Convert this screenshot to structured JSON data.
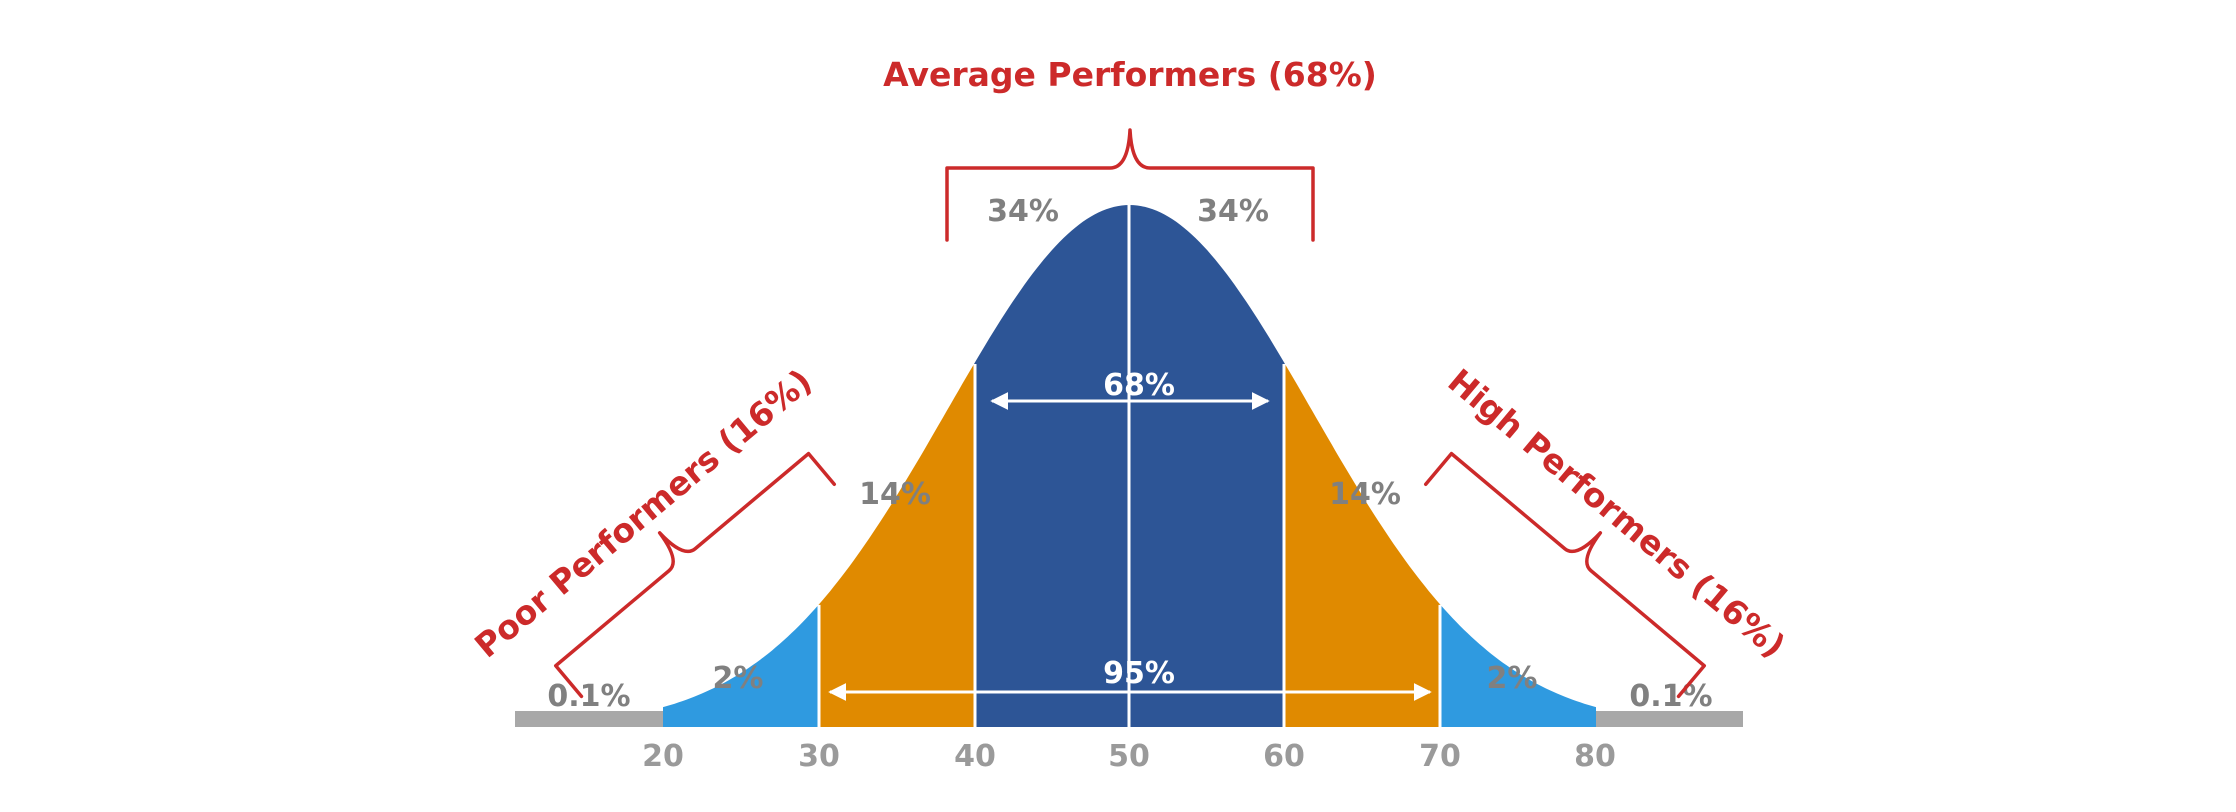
{
  "colors": {
    "center": "#2d5596",
    "mid": "#e08a00",
    "outer": "#2f9ae0",
    "tail": "#a8a8a8",
    "annotation": "#cc2a2a",
    "label": "#808080",
    "inner_text": "#ffffff"
  },
  "x_axis": {
    "ticks": [
      "20",
      "30",
      "40",
      "50",
      "60",
      "70",
      "80"
    ]
  },
  "segments": [
    {
      "from": 20,
      "to": 30,
      "percent": "2%"
    },
    {
      "from": 30,
      "to": 40,
      "percent": "14%"
    },
    {
      "from": 40,
      "to": 50,
      "percent": "34%"
    },
    {
      "from": 50,
      "to": 60,
      "percent": "34%"
    },
    {
      "from": 60,
      "to": 70,
      "percent": "14%"
    },
    {
      "from": 70,
      "to": 80,
      "percent": "2%"
    }
  ],
  "tails": {
    "left": "0.1%",
    "right": "0.1%"
  },
  "ranges": {
    "inner": "68%",
    "outer": "95%"
  },
  "groups": {
    "average": "Average Performers (68%)",
    "poor": "Poor Performers (16%)",
    "high": "High Performers (16%)"
  }
}
